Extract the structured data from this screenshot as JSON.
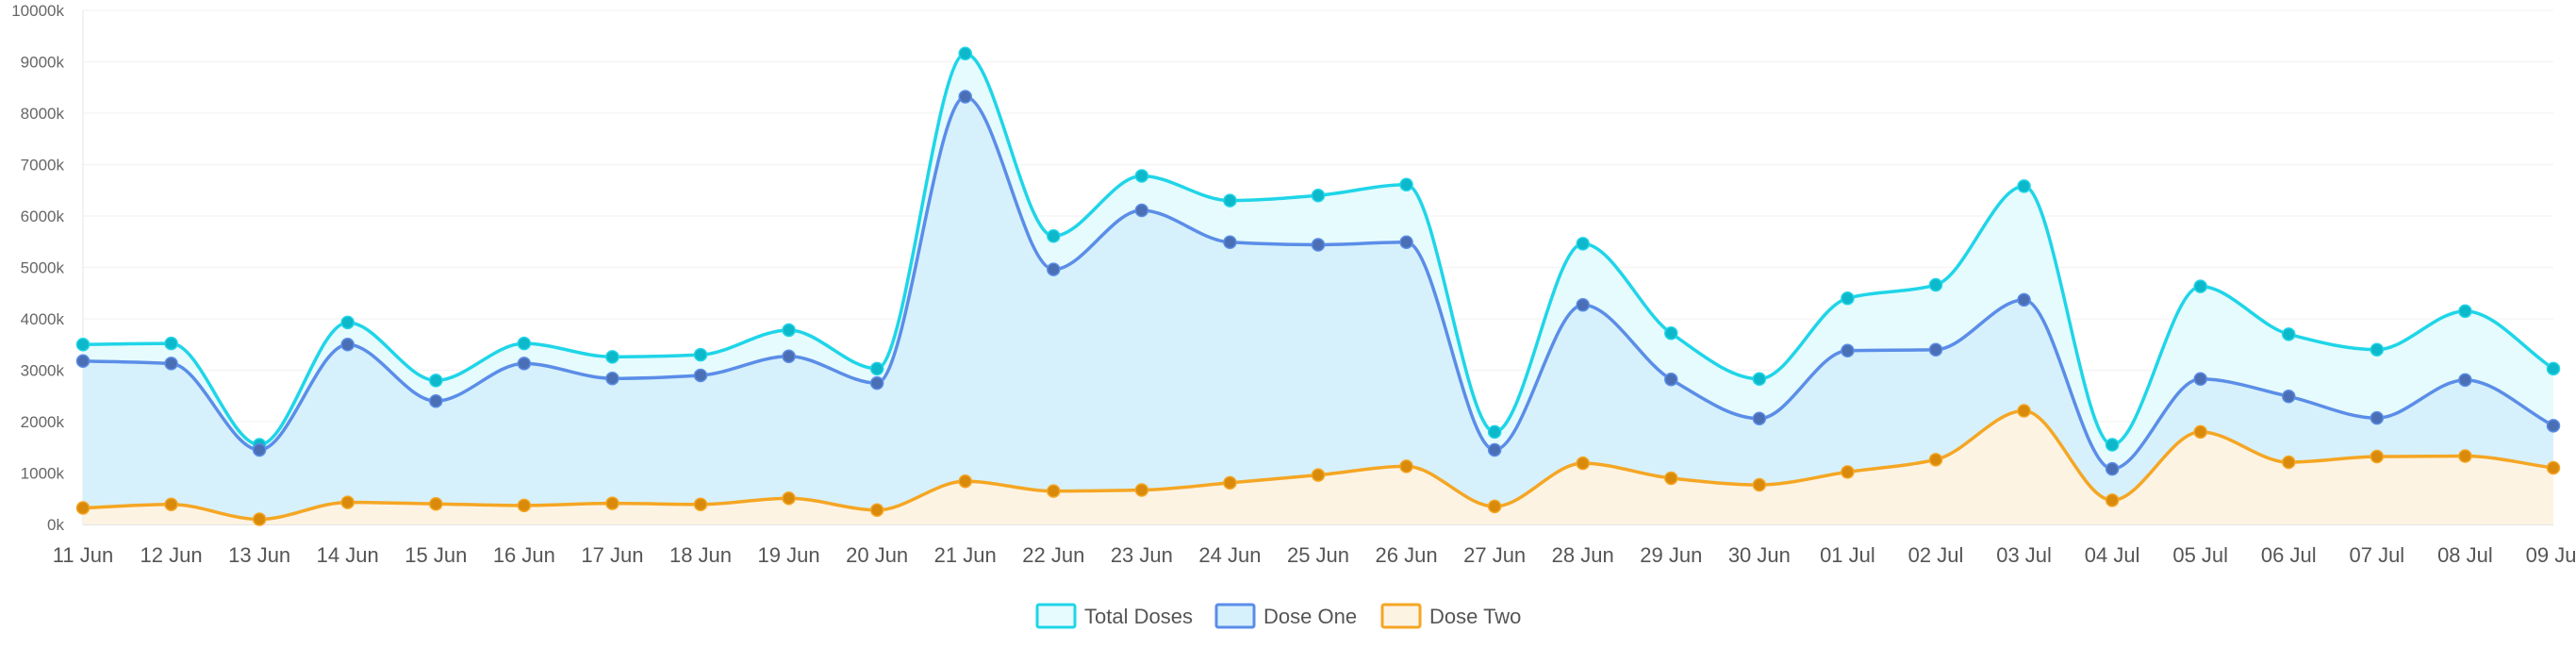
{
  "chart_data": {
    "type": "area",
    "categories": [
      "11 Jun",
      "12 Jun",
      "13 Jun",
      "14 Jun",
      "15 Jun",
      "16 Jun",
      "17 Jun",
      "18 Jun",
      "19 Jun",
      "20 Jun",
      "21 Jun",
      "22 Jun",
      "23 Jun",
      "24 Jun",
      "25 Jun",
      "26 Jun",
      "27 Jun",
      "28 Jun",
      "29 Jun",
      "30 Jun",
      "01 Jul",
      "02 Jul",
      "03 Jul",
      "04 Jul",
      "05 Jul",
      "06 Jul",
      "07 Jul",
      "08 Jul",
      "09 Jul"
    ],
    "series": [
      {
        "name": "Total Doses",
        "color": "#1fd5e8",
        "fill": "#e6fbfd",
        "values": [
          3500,
          3520,
          1550,
          3930,
          2800,
          3520,
          3260,
          3300,
          3780,
          3030,
          9160,
          5610,
          6780,
          6300,
          6400,
          6610,
          1800,
          5460,
          3720,
          2830,
          4400,
          4660,
          6580,
          1550,
          4630,
          3700,
          3400,
          4150,
          3030
        ]
      },
      {
        "name": "Dose One",
        "color": "#5b8de8",
        "fill": "#d6f1fc",
        "values": [
          3180,
          3130,
          1450,
          3500,
          2400,
          3130,
          2840,
          2900,
          3270,
          2750,
          8320,
          4960,
          6110,
          5490,
          5440,
          5490,
          1450,
          4270,
          2820,
          2060,
          3380,
          3400,
          4370,
          1080,
          2830,
          2490,
          2070,
          2810,
          1920
        ]
      },
      {
        "name": "Dose Two",
        "color": "#f5a623",
        "fill": "#fdf3e3",
        "values": [
          320,
          390,
          100,
          430,
          400,
          370,
          410,
          390,
          510,
          280,
          840,
          650,
          670,
          810,
          960,
          1130,
          350,
          1190,
          900,
          770,
          1020,
          1260,
          2210,
          470,
          1800,
          1210,
          1320,
          1330,
          1100
        ]
      }
    ],
    "yticks": [
      "0k",
      "1000k",
      "2000k",
      "3000k",
      "4000k",
      "5000k",
      "6000k",
      "7000k",
      "8000k",
      "9000k",
      "10000k"
    ],
    "ylim": [
      0,
      10000
    ],
    "grid": true,
    "legend_position": "bottom-center",
    "title": "",
    "xlabel": "",
    "ylabel": ""
  }
}
